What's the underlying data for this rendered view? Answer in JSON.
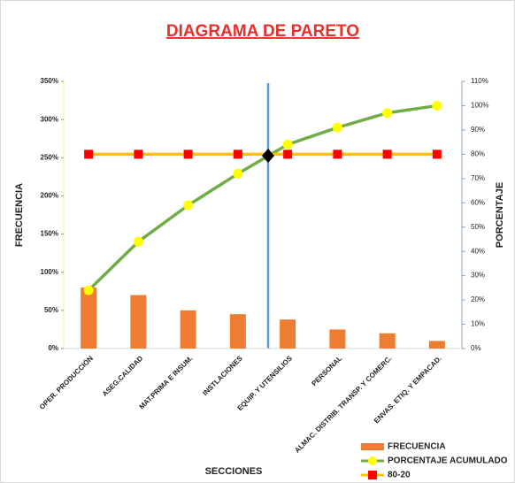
{
  "chart_data": {
    "type": "pareto",
    "title": "DIAGRAMA DE PARETO",
    "x_label": "SECCIONES",
    "y_label": "FRECUENCIA",
    "y2_label": "PORCENTAJE",
    "categories": [
      "OPER. PRODUCCIÓN",
      "ASEG.CALIDAD",
      "MAT.PRIMA E INSUM.",
      "INSTLACIONES",
      "EQUIP. Y UTENSILIOS",
      "PERSONAL",
      "ALMAC. DISTRIB. TRANSP. Y COMERC.",
      "ENVAS. ETIQ. Y EMPACAD."
    ],
    "series": [
      {
        "name": "FRECUENCIA",
        "type": "bar",
        "color": "#ed7d31",
        "values": [
          80,
          70,
          50,
          45,
          38,
          25,
          20,
          10
        ]
      },
      {
        "name": "PORCENTAJE ACUMULADO",
        "type": "line",
        "axis": "y2",
        "color": "#70ad47",
        "marker_color": "#ffff00",
        "marker": "circle",
        "values": [
          24,
          44,
          59,
          72,
          84,
          91,
          97,
          100
        ]
      },
      {
        "name": "80-20",
        "type": "line",
        "axis": "y2",
        "color": "#ffc000",
        "marker_color": "#ff0000",
        "marker": "square",
        "values": [
          80,
          80,
          80,
          80,
          80,
          80,
          80,
          80
        ]
      }
    ],
    "ylim": [
      0,
      350
    ],
    "yticks": [
      {
        "value": 0,
        "label": "0%"
      },
      {
        "value": 50,
        "label": "50%"
      },
      {
        "value": 100,
        "label": "100%"
      },
      {
        "value": 150,
        "label": "150%"
      },
      {
        "value": 200,
        "label": "200%"
      },
      {
        "value": 250,
        "label": "250%"
      },
      {
        "value": 300,
        "label": "300%"
      },
      {
        "value": 350,
        "label": "350%"
      }
    ],
    "y2lim": [
      0,
      110
    ],
    "y2ticks": [
      {
        "value": 0,
        "label": "0%"
      },
      {
        "value": 10,
        "label": "10%"
      },
      {
        "value": 20,
        "label": "20%"
      },
      {
        "value": 30,
        "label": "30%"
      },
      {
        "value": 40,
        "label": "40%"
      },
      {
        "value": 50,
        "label": "50%"
      },
      {
        "value": 60,
        "label": "60%"
      },
      {
        "value": 70,
        "label": "70%"
      },
      {
        "value": 80,
        "label": "80%"
      },
      {
        "value": 90,
        "label": "90%"
      },
      {
        "value": 100,
        "label": "100%"
      },
      {
        "value": 110,
        "label": "110%"
      }
    ]
  }
}
